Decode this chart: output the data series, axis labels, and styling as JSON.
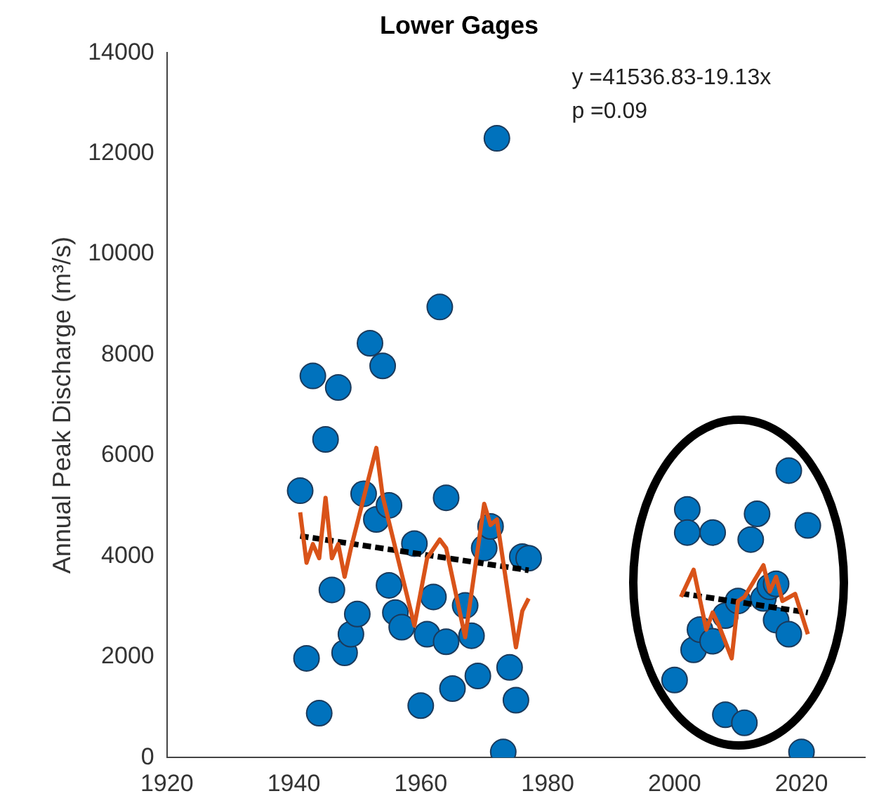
{
  "chart_data": {
    "type": "scatter",
    "title": "Lower Gages",
    "ylabel": "Annual Peak Discharge (m³/s)",
    "xlim": [
      1920,
      2030
    ],
    "xticks": [
      1920,
      1940,
      1960,
      1980,
      2000,
      2020
    ],
    "ylim": [
      0,
      14000
    ],
    "yticks": [
      0,
      2000,
      4000,
      6000,
      8000,
      10000,
      12000,
      14000
    ],
    "grid": false,
    "legend": false,
    "marker": "circle",
    "annotations": [
      "y =41536.83-19.13x",
      "p =0.09"
    ],
    "series": [
      {
        "type": "scatter",
        "color": "#0072bd",
        "x": [
          1941,
          1942,
          1943,
          1944,
          1945,
          1946,
          1947,
          1948,
          1949,
          1950,
          1951,
          1952,
          1953,
          1954,
          1955,
          1955,
          1956,
          1957,
          1959,
          1960,
          1961,
          1962,
          1963,
          1964,
          1964,
          1965,
          1967,
          1968,
          1969,
          1970,
          1971,
          1972,
          1973,
          1974,
          1975,
          1976,
          1977,
          2000,
          2002,
          2002,
          2003,
          2004,
          2006,
          2006,
          2008,
          2008,
          2010,
          2011,
          2012,
          2013,
          2014,
          2015,
          2016,
          2016,
          2018,
          2018,
          2020,
          2021
        ],
        "values": [
          5300,
          1970,
          7580,
          880,
          6320,
          3330,
          7350,
          2080,
          2450,
          2850,
          5240,
          8230,
          4730,
          7780,
          5010,
          3420,
          2880,
          2590,
          4250,
          1030,
          2450,
          3190,
          8950,
          5160,
          2300,
          1370,
          3020,
          2420,
          1620,
          4160,
          4590,
          12300,
          110,
          1790,
          1140,
          3990,
          3960,
          1540,
          4930,
          4470,
          2140,
          2540,
          4470,
          2310,
          850,
          2820,
          3110,
          690,
          4330,
          4840,
          3160,
          3390,
          3450,
          2730,
          5700,
          2450,
          110,
          4610
        ]
      },
      {
        "type": "line",
        "color": "#d95319",
        "line_style": "solid",
        "marker": "none",
        "x": [
          1941,
          1942,
          1943,
          1944,
          1945,
          1946,
          1947,
          1948,
          1949,
          1953,
          1954,
          1956,
          1959,
          1961,
          1963,
          1964,
          1967,
          1970,
          1971,
          1972,
          1975,
          1976,
          1977
        ],
        "values": [
          4870,
          3870,
          4240,
          3960,
          5160,
          3960,
          4240,
          3590,
          4160,
          6150,
          5190,
          4160,
          2620,
          3960,
          4330,
          4160,
          2390,
          5040,
          4620,
          4730,
          2190,
          2910,
          3160
        ]
      },
      {
        "type": "line",
        "color": "#d95319",
        "line_style": "solid",
        "marker": "none",
        "x": [
          2001,
          2003,
          2005,
          2006,
          2007,
          2009,
          2010,
          2011,
          2014,
          2015,
          2016,
          2017,
          2019,
          2021
        ],
        "values": [
          3190,
          3730,
          2540,
          2880,
          2620,
          1970,
          3110,
          3190,
          3820,
          3300,
          3590,
          3110,
          3250,
          2450
        ]
      },
      {
        "type": "line",
        "color": "#000000",
        "line_style": "dashed",
        "marker": "none",
        "x": [
          1941,
          1977
        ],
        "values": [
          4400,
          3720
        ]
      },
      {
        "type": "line",
        "color": "#000000",
        "line_style": "dashed",
        "marker": "none",
        "x": [
          2001,
          2021
        ],
        "values": [
          3260,
          2880
        ]
      }
    ]
  }
}
